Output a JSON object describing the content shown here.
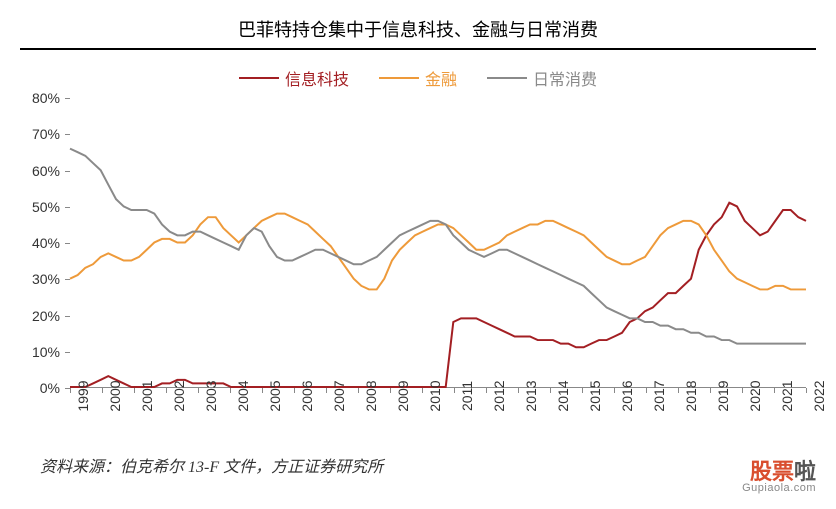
{
  "title": "巴菲特持仓集中于信息科技、金融与日常消费",
  "source": "资料来源：伯克希尔 13-F 文件，方正证券研究所",
  "watermark": {
    "main1": "股票",
    "main2": "啦",
    "sub": "Gupiaola.com",
    "color1": "#d94e2e",
    "color2": "#555555"
  },
  "chart": {
    "type": "line",
    "background_color": "#ffffff",
    "title_fontsize": 18,
    "label_fontsize": 14,
    "axis_color": "#888888",
    "ylim": [
      0,
      80
    ],
    "ytick_step": 10,
    "y_suffix": "%",
    "x_labels": [
      "1999",
      "2000",
      "2001",
      "2002",
      "2003",
      "2004",
      "2005",
      "2006",
      "2007",
      "2008",
      "2009",
      "2010",
      "2011",
      "2012",
      "2013",
      "2014",
      "2015",
      "2016",
      "2017",
      "2018",
      "2019",
      "2020",
      "2021",
      "2022"
    ],
    "line_width": 2,
    "series": [
      {
        "name": "信息科技",
        "color": "#a31f23",
        "data": [
          0,
          0,
          0,
          1,
          2,
          3,
          2,
          1,
          0,
          0,
          0,
          0,
          1,
          1,
          2,
          2,
          1,
          1,
          1,
          1,
          1,
          0,
          0,
          0,
          0,
          0,
          0,
          0,
          0,
          0,
          0,
          0,
          0,
          0,
          0,
          0,
          0,
          0,
          0,
          0,
          0,
          0,
          0,
          0,
          0,
          0,
          0,
          0,
          0,
          0,
          18,
          19,
          19,
          19,
          18,
          17,
          16,
          15,
          14,
          14,
          14,
          13,
          13,
          13,
          12,
          12,
          11,
          11,
          12,
          13,
          13,
          14,
          15,
          18,
          19,
          21,
          22,
          24,
          26,
          26,
          28,
          30,
          38,
          42,
          45,
          47,
          51,
          50,
          46,
          44,
          42,
          43,
          46,
          49,
          49,
          47,
          46
        ]
      },
      {
        "name": "金融",
        "color": "#ee9a3a",
        "data": [
          30,
          31,
          33,
          34,
          36,
          37,
          36,
          35,
          35,
          36,
          38,
          40,
          41,
          41,
          40,
          40,
          42,
          45,
          47,
          47,
          44,
          42,
          40,
          42,
          44,
          46,
          47,
          48,
          48,
          47,
          46,
          45,
          43,
          41,
          39,
          36,
          33,
          30,
          28,
          27,
          27,
          30,
          35,
          38,
          40,
          42,
          43,
          44,
          45,
          45,
          44,
          42,
          40,
          38,
          38,
          39,
          40,
          42,
          43,
          44,
          45,
          45,
          46,
          46,
          45,
          44,
          43,
          42,
          40,
          38,
          36,
          35,
          34,
          34,
          35,
          36,
          39,
          42,
          44,
          45,
          46,
          46,
          45,
          42,
          38,
          35,
          32,
          30,
          29,
          28,
          27,
          27,
          28,
          28,
          27,
          27,
          27
        ]
      },
      {
        "name": "日常消费",
        "color": "#8a8a8a",
        "data": [
          66,
          65,
          64,
          62,
          60,
          56,
          52,
          50,
          49,
          49,
          49,
          48,
          45,
          43,
          42,
          42,
          43,
          43,
          42,
          41,
          40,
          39,
          38,
          42,
          44,
          43,
          39,
          36,
          35,
          35,
          36,
          37,
          38,
          38,
          37,
          36,
          35,
          34,
          34,
          35,
          36,
          38,
          40,
          42,
          43,
          44,
          45,
          46,
          46,
          45,
          42,
          40,
          38,
          37,
          36,
          37,
          38,
          38,
          37,
          36,
          35,
          34,
          33,
          32,
          31,
          30,
          29,
          28,
          26,
          24,
          22,
          21,
          20,
          19,
          19,
          18,
          18,
          17,
          17,
          16,
          16,
          15,
          15,
          14,
          14,
          13,
          13,
          12,
          12,
          12,
          12,
          12,
          12,
          12,
          12,
          12,
          12
        ]
      }
    ]
  }
}
